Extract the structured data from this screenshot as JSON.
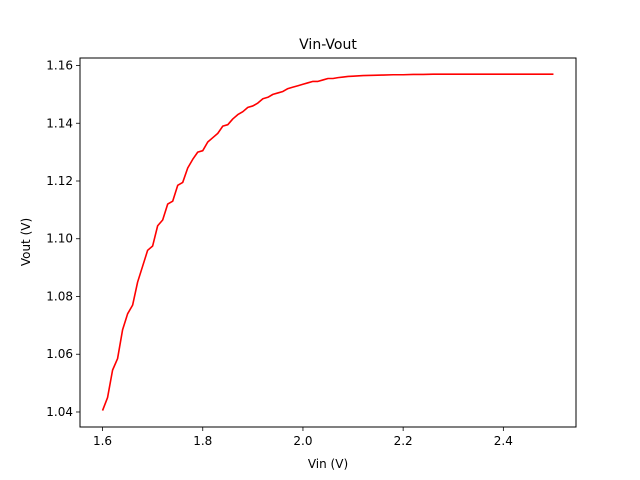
{
  "chart_data": {
    "type": "line",
    "title": "Vin-Vout",
    "xlabel": "Vin (V)",
    "ylabel": "Vout (V)",
    "xlim": [
      1.555,
      2.545
    ],
    "ylim": [
      1.0348,
      1.1626
    ],
    "grid": false,
    "xticks": [
      "1.6",
      "1.8",
      "2.0",
      "2.2",
      "2.4"
    ],
    "xtick_values": [
      1.6,
      1.8,
      2.0,
      2.2,
      2.4
    ],
    "yticks": [
      "1.04",
      "1.06",
      "1.08",
      "1.10",
      "1.12",
      "1.14",
      "1.16"
    ],
    "ytick_values": [
      1.04,
      1.06,
      1.08,
      1.1,
      1.12,
      1.14,
      1.16
    ],
    "series": [
      {
        "color": "#ff0000",
        "x": [
          1.6,
          1.61,
          1.62,
          1.63,
          1.64,
          1.65,
          1.66,
          1.67,
          1.68,
          1.69,
          1.7,
          1.71,
          1.72,
          1.73,
          1.74,
          1.75,
          1.76,
          1.77,
          1.78,
          1.79,
          1.8,
          1.81,
          1.82,
          1.83,
          1.84,
          1.85,
          1.86,
          1.87,
          1.88,
          1.89,
          1.9,
          1.91,
          1.92,
          1.93,
          1.94,
          1.95,
          1.96,
          1.97,
          1.98,
          1.99,
          2.0,
          2.01,
          2.02,
          2.03,
          2.04,
          2.05,
          2.06,
          2.07,
          2.08,
          2.09,
          2.1,
          2.12,
          2.14,
          2.16,
          2.18,
          2.2,
          2.22,
          2.24,
          2.26,
          2.28,
          2.3,
          2.32,
          2.34,
          2.36,
          2.38,
          2.4,
          2.42,
          2.44,
          2.46,
          2.48,
          2.5
        ],
        "y": [
          1.0405,
          1.045,
          1.0545,
          1.0585,
          1.0685,
          1.074,
          1.077,
          1.085,
          1.0905,
          1.096,
          1.0975,
          1.1045,
          1.1065,
          1.112,
          1.113,
          1.1185,
          1.1195,
          1.1245,
          1.1275,
          1.13,
          1.1305,
          1.1335,
          1.135,
          1.1365,
          1.139,
          1.1395,
          1.1415,
          1.143,
          1.144,
          1.1455,
          1.146,
          1.147,
          1.1485,
          1.149,
          1.15,
          1.1505,
          1.151,
          1.152,
          1.1525,
          1.153,
          1.1535,
          1.154,
          1.1545,
          1.1545,
          1.155,
          1.1555,
          1.1555,
          1.1558,
          1.156,
          1.1562,
          1.1563,
          1.1565,
          1.1566,
          1.1567,
          1.1568,
          1.1568,
          1.1569,
          1.1569,
          1.157,
          1.157,
          1.157,
          1.157,
          1.157,
          1.157,
          1.157,
          1.157,
          1.157,
          1.157,
          1.157,
          1.157,
          1.157
        ]
      }
    ]
  }
}
